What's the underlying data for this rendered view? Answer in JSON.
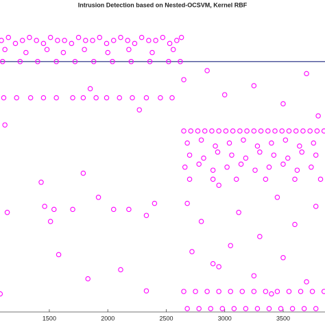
{
  "chart_data": {
    "type": "scatter",
    "title": "Intrusion Detection based on Nested-OCSVM, Kernel RBF",
    "xlim": [
      1078,
      3858
    ],
    "xticks": [
      1500,
      2000,
      2500,
      3000,
      3500
    ],
    "ylim": [
      0,
      1
    ],
    "hline": {
      "value": 0.83,
      "color": "#1a237e"
    },
    "series": [
      {
        "color": "#ff00ff",
        "x": [
          1090,
          1150,
          1210,
          1270,
          1330,
          1390,
          1450,
          1510,
          1570,
          1630,
          1690,
          1750,
          1810,
          1870,
          1930,
          1990,
          2050,
          2110,
          2170,
          2230,
          2290,
          2350,
          2410,
          2470,
          2530,
          2590,
          2630,
          1120,
          1300,
          1480,
          1620,
          1800,
          2000,
          2180,
          2380,
          2560,
          1100,
          1250,
          1400,
          1560,
          1720,
          1880,
          2040,
          2200,
          2360,
          2520,
          2620,
          1110,
          1220,
          1340,
          1450,
          1560,
          1700,
          1790,
          1900,
          1990,
          2100,
          2210,
          2330,
          2450,
          2550,
          1850,
          2270,
          1120,
          1430,
          1700,
          1790,
          1920,
          2050,
          2180,
          2330,
          2400,
          1510,
          1140,
          1580,
          1830,
          2110,
          2330,
          1080,
          1540,
          1460,
          2650,
          2710,
          2770,
          2830,
          2890,
          2950,
          3010,
          3070,
          3130,
          3190,
          3250,
          3310,
          3370,
          3430,
          3490,
          3550,
          3610,
          3670,
          3730,
          3790,
          3850,
          2680,
          2800,
          2920,
          3040,
          3160,
          3280,
          3400,
          3520,
          3640,
          3760,
          2700,
          2820,
          2940,
          3060,
          3180,
          3300,
          3420,
          3540,
          3660,
          3780,
          2660,
          2780,
          2900,
          3020,
          3140,
          3260,
          3380,
          3500,
          3620,
          3740,
          2700,
          2900,
          3100,
          3350,
          3600,
          3820,
          2680,
          2800,
          2950,
          3120,
          3300,
          3450,
          3600,
          3780,
          2720,
          2900,
          3050,
          3250,
          3500,
          3700,
          2650,
          2850,
          3000,
          3250,
          3500,
          3700,
          3800,
          2950,
          3400,
          2650,
          2750,
          2850,
          2950,
          3050,
          3150,
          3250,
          3350,
          3450,
          3550,
          3650,
          3750,
          3850,
          2680,
          2780,
          2880,
          2980,
          3080,
          3180,
          3280,
          3380,
          3480,
          3580,
          3680,
          3780
        ],
        "values": [
          0.9,
          0.91,
          0.89,
          0.9,
          0.91,
          0.9,
          0.89,
          0.91,
          0.9,
          0.9,
          0.89,
          0.91,
          0.9,
          0.9,
          0.91,
          0.89,
          0.9,
          0.91,
          0.9,
          0.89,
          0.91,
          0.9,
          0.9,
          0.91,
          0.89,
          0.9,
          0.91,
          0.87,
          0.86,
          0.87,
          0.86,
          0.87,
          0.86,
          0.87,
          0.86,
          0.87,
          0.83,
          0.83,
          0.83,
          0.83,
          0.83,
          0.83,
          0.83,
          0.83,
          0.83,
          0.83,
          0.83,
          0.71,
          0.71,
          0.71,
          0.71,
          0.71,
          0.71,
          0.71,
          0.71,
          0.71,
          0.71,
          0.71,
          0.71,
          0.71,
          0.71,
          0.74,
          0.67,
          0.62,
          0.43,
          0.34,
          0.46,
          0.38,
          0.34,
          0.34,
          0.32,
          0.36,
          0.3,
          0.33,
          0.19,
          0.11,
          0.14,
          0.07,
          0.06,
          0.34,
          0.35,
          0.6,
          0.6,
          0.6,
          0.6,
          0.6,
          0.6,
          0.6,
          0.6,
          0.6,
          0.6,
          0.6,
          0.6,
          0.6,
          0.6,
          0.6,
          0.6,
          0.6,
          0.6,
          0.6,
          0.6,
          0.6,
          0.56,
          0.57,
          0.55,
          0.56,
          0.57,
          0.55,
          0.56,
          0.57,
          0.55,
          0.56,
          0.52,
          0.51,
          0.53,
          0.52,
          0.51,
          0.53,
          0.52,
          0.51,
          0.53,
          0.52,
          0.48,
          0.49,
          0.47,
          0.48,
          0.49,
          0.47,
          0.48,
          0.49,
          0.47,
          0.48,
          0.44,
          0.44,
          0.44,
          0.44,
          0.44,
          0.44,
          0.36,
          0.3,
          0.42,
          0.33,
          0.25,
          0.38,
          0.29,
          0.35,
          0.2,
          0.16,
          0.22,
          0.12,
          0.18,
          0.1,
          0.77,
          0.8,
          0.72,
          0.75,
          0.69,
          0.79,
          0.65,
          0.15,
          0.06,
          0.068,
          0.068,
          0.068,
          0.068,
          0.068,
          0.068,
          0.068,
          0.068,
          0.068,
          0.068,
          0.068,
          0.068,
          0.068,
          0.011,
          0.011,
          0.011,
          0.011,
          0.011,
          0.011,
          0.011,
          0.011,
          0.011,
          0.011,
          0.011,
          0.011
        ]
      }
    ]
  }
}
